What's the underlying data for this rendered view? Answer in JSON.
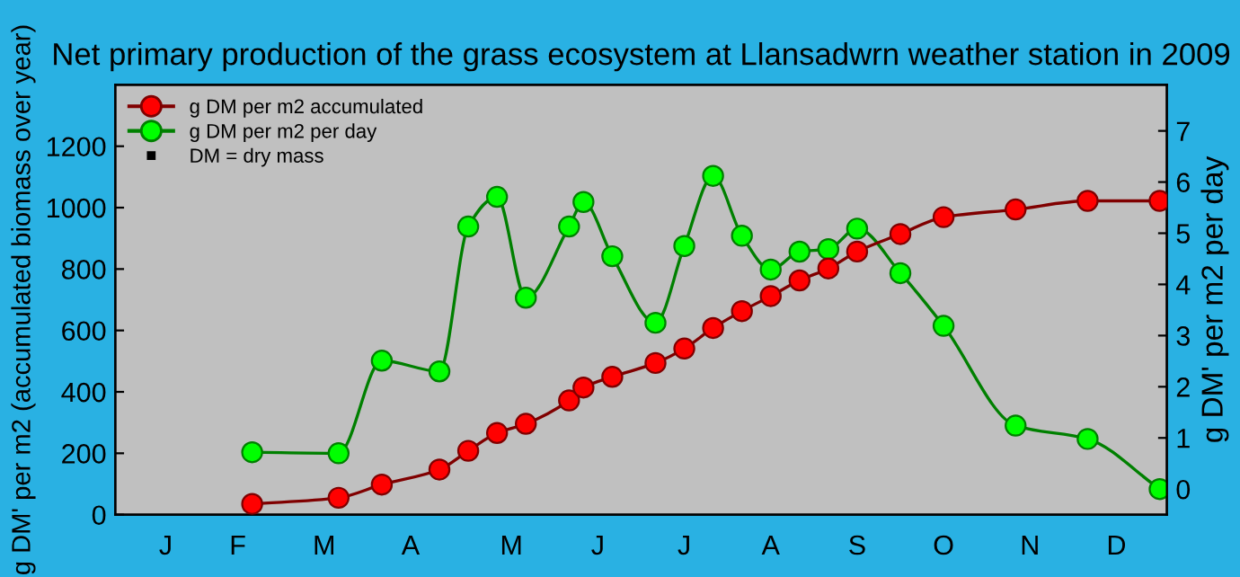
{
  "chart_data": {
    "type": "line",
    "title": "Net primary production of the grass ecosystem at Llansadwrn weather station in 2009",
    "ylabel": "g DM' per m2 (accumulated biomass over year)",
    "y2label": "g DM' per m2 per day",
    "categories": [
      null,
      null,
      null,
      "J",
      null,
      null,
      null,
      null,
      "F",
      null,
      null,
      null,
      null,
      null,
      "M",
      null,
      null,
      null,
      null,
      null,
      "A",
      null,
      null,
      null,
      null,
      null,
      null,
      "M",
      null,
      null,
      null,
      null,
      null,
      "J",
      null,
      null,
      null,
      null,
      null,
      "J",
      null,
      null,
      null,
      null,
      null,
      "A",
      null,
      null,
      null,
      null,
      null,
      "S",
      null,
      null,
      null,
      null,
      null,
      "O",
      null,
      null,
      null,
      null,
      null,
      "N",
      null,
      null,
      null,
      null,
      null,
      "D",
      null,
      null,
      null
    ],
    "series": [
      {
        "name": "g DM per m2 accumulated",
        "color": "#ff0000",
        "values": [
          null,
          null,
          null,
          null,
          null,
          null,
          null,
          null,
          null,
          35,
          null,
          null,
          null,
          null,
          null,
          55,
          null,
          null,
          98,
          null,
          null,
          null,
          147,
          null,
          208,
          null,
          266,
          null,
          296,
          null,
          null,
          372,
          414,
          null,
          449,
          null,
          null,
          494,
          null,
          541,
          null,
          608,
          null,
          663,
          null,
          712,
          null,
          763,
          null,
          802,
          null,
          857,
          null,
          null,
          914,
          null,
          null,
          969,
          null,
          null,
          null,
          null,
          994,
          null,
          null,
          null,
          null,
          1022,
          null,
          null,
          null,
          null,
          1022
        ]
      },
      {
        "name": "g DM per m2 per day",
        "color": "#00ff00",
        "axis": "y2",
        "values": [
          null,
          null,
          null,
          null,
          null,
          null,
          null,
          null,
          null,
          0.72,
          null,
          null,
          null,
          null,
          null,
          0.7,
          null,
          null,
          2.51,
          null,
          null,
          null,
          2.3,
          null,
          5.13,
          null,
          5.71,
          null,
          3.74,
          null,
          null,
          5.13,
          5.61,
          null,
          4.55,
          null,
          null,
          3.25,
          null,
          4.75,
          null,
          6.12,
          null,
          4.95,
          null,
          4.29,
          null,
          4.64,
          null,
          4.69,
          null,
          5.09,
          null,
          null,
          4.22,
          null,
          null,
          3.19,
          null,
          null,
          null,
          null,
          1.24,
          null,
          null,
          null,
          null,
          0.98,
          null,
          null,
          null,
          null,
          0.0
        ]
      }
    ],
    "annotations": [
      "DM = dry mass"
    ],
    "ylim": [
      0,
      1400
    ],
    "yticks": [
      0,
      200,
      400,
      600,
      800,
      1000,
      1200
    ],
    "y2lim": [
      -0.5,
      7.9
    ],
    "y2ticks": [
      0,
      1,
      2,
      3,
      4,
      5,
      6,
      7
    ],
    "marker": "circle",
    "legend": "top left",
    "grid": false
  }
}
